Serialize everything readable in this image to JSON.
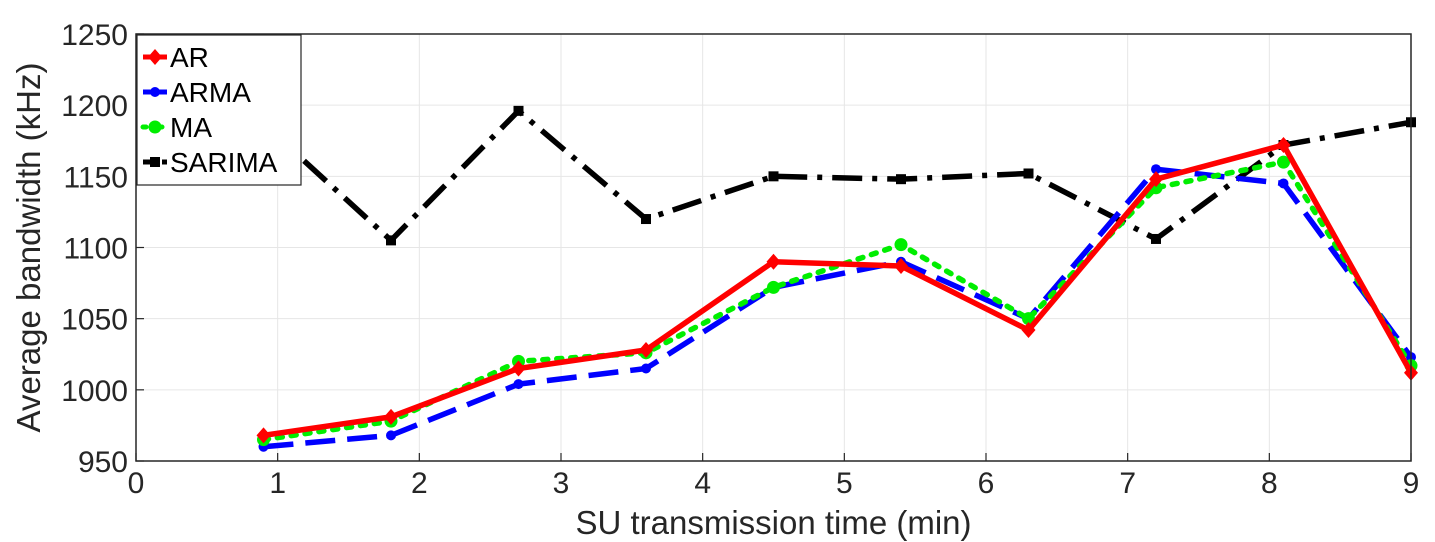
{
  "chart_data": {
    "type": "line",
    "title": "",
    "xlabel": "SU transmission time (min)",
    "ylabel": "Average bandwidth (kHz)",
    "xlim": [
      0,
      9
    ],
    "ylim": [
      950,
      1250
    ],
    "xticks": [
      "0",
      "1",
      "2",
      "3",
      "4",
      "5",
      "6",
      "7",
      "8",
      "9"
    ],
    "yticks": [
      "950",
      "1000",
      "1050",
      "1100",
      "1150",
      "1200",
      "1250"
    ],
    "grid": true,
    "legend_position": "top-left",
    "x": [
      0.9,
      1.8,
      2.7,
      3.6,
      4.5,
      5.4,
      6.3,
      7.2,
      8.1,
      9.0
    ],
    "series": [
      {
        "name": "AR",
        "color": "#ff0000",
        "style": "solid",
        "marker": "diamond",
        "values": [
          968,
          981,
          1015,
          1028,
          1090,
          1087,
          1042,
          1148,
          1172,
          1012
        ]
      },
      {
        "name": "ARMA",
        "color": "#0000ff",
        "style": "dashed",
        "marker": "dot",
        "values": [
          960,
          968,
          1004,
          1015,
          1072,
          1090,
          1050,
          1155,
          1145,
          1023
        ]
      },
      {
        "name": "MA",
        "color": "#00ee00",
        "style": "dotted",
        "marker": "circle",
        "values": [
          965,
          978,
          1020,
          1026,
          1072,
          1102,
          1050,
          1142,
          1160,
          1017
        ]
      },
      {
        "name": "SARIMA",
        "color": "#000000",
        "style": "dashdot",
        "marker": "square",
        "values": [
          1187,
          1105,
          1196,
          1120,
          1150,
          1148,
          1152,
          1106,
          1172,
          1188
        ]
      }
    ]
  }
}
